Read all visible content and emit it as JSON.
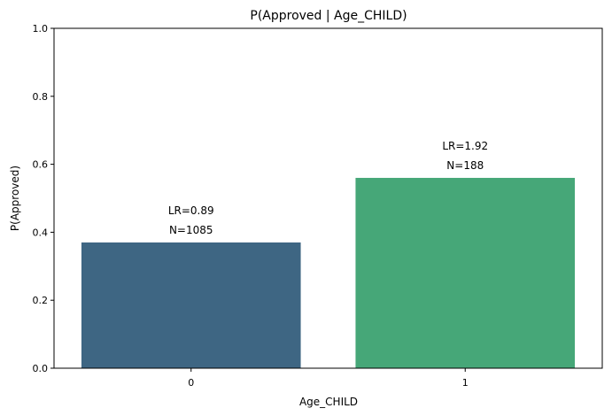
{
  "chart_data": {
    "type": "bar",
    "title": "P(Approved | Age_CHILD)",
    "xlabel": "Age_CHILD",
    "ylabel": "P(Approved)",
    "categories": [
      "0",
      "1"
    ],
    "values": [
      0.37,
      0.56
    ],
    "ylim": [
      0,
      1.0
    ],
    "yticks": [
      "0.0",
      "0.2",
      "0.4",
      "0.6",
      "0.8",
      "1.0"
    ],
    "bar_colors": [
      "#3e6683",
      "#46a778"
    ],
    "annotations": [
      {
        "lr": "LR=0.89",
        "n": "N=1085"
      },
      {
        "lr": "LR=1.92",
        "n": "N=188"
      }
    ],
    "grid": false,
    "legend": "none"
  }
}
